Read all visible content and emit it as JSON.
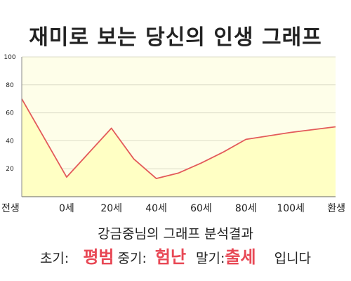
{
  "title": "재미로 보는 당신의 인생 그래프",
  "subtitle": "강금중님의 그래프 분석결과",
  "summary": {
    "early_label": "초기:",
    "early_value": "평범",
    "middle_label": "중기:",
    "middle_value": "험난",
    "late_label": "말기:",
    "late_value": "출세",
    "ending": "입니다"
  },
  "colors": {
    "line": "#e35a5a",
    "fill": "#ffffc4",
    "plot_background": "#fefee9",
    "grid": "#dcdcc8",
    "highlight_text": "#e84855"
  },
  "chart_data": {
    "type": "area",
    "x_tick_labels": [
      "전생",
      "0세",
      "20세",
      "40세",
      "60세",
      "80세",
      "100세",
      "환생"
    ],
    "x": [
      -20,
      0,
      20,
      30,
      40,
      50,
      60,
      70,
      80,
      100,
      120
    ],
    "y": [
      70,
      14,
      49,
      27,
      13,
      17,
      24,
      32,
      41,
      46,
      50
    ],
    "xlim": [
      -20,
      120
    ],
    "ylim": [
      0,
      100
    ],
    "y_ticks": [
      20,
      40,
      60,
      80,
      100
    ],
    "grid": true,
    "legend": "none"
  }
}
